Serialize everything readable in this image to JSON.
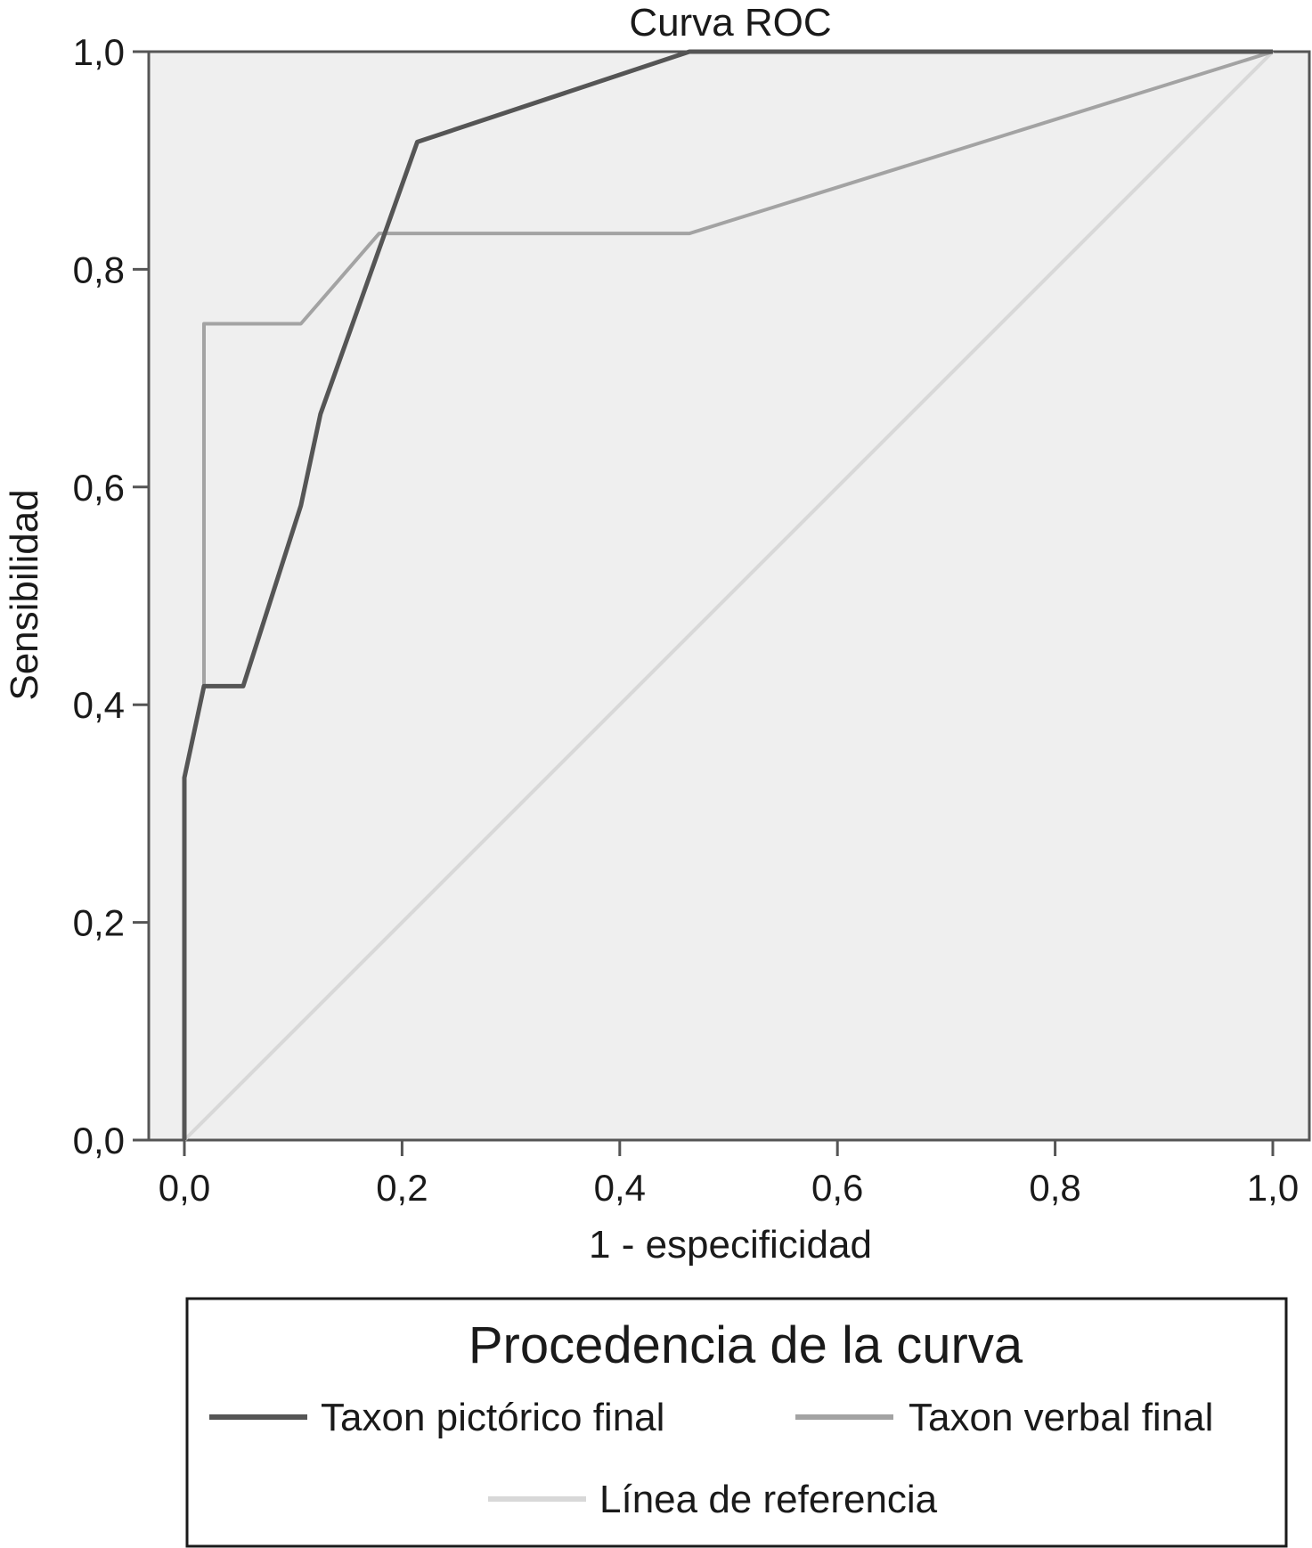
{
  "chart_data": {
    "type": "line",
    "title": "Curva ROC",
    "xlabel": "1 - especificidad",
    "ylabel": "Sensibilidad",
    "xlim": [
      0,
      1
    ],
    "ylim": [
      0,
      1
    ],
    "x_ticks": [
      "0,0",
      "0,2",
      "0,4",
      "0,6",
      "0,8",
      "1,0"
    ],
    "y_ticks": [
      "0,0",
      "0,2",
      "0,4",
      "0,6",
      "0,8",
      "1,0"
    ],
    "grid": false,
    "legend": {
      "title": "Procedencia de la curva",
      "placement": "bottom"
    },
    "series": [
      {
        "name": "Taxon pictórico final",
        "color": "#555555",
        "points": [
          [
            0.0,
            0.0
          ],
          [
            0.0,
            0.333
          ],
          [
            0.018,
            0.417
          ],
          [
            0.054,
            0.417
          ],
          [
            0.107,
            0.583
          ],
          [
            0.125,
            0.667
          ],
          [
            0.214,
            0.917
          ],
          [
            0.464,
            1.0
          ],
          [
            1.0,
            1.0
          ]
        ]
      },
      {
        "name": "Taxon verbal final",
        "color": "#a3a3a3",
        "points": [
          [
            0.0,
            0.0
          ],
          [
            0.0,
            0.333
          ],
          [
            0.018,
            0.417
          ],
          [
            0.018,
            0.75
          ],
          [
            0.107,
            0.75
          ],
          [
            0.179,
            0.833
          ],
          [
            0.464,
            0.833
          ],
          [
            1.0,
            1.0
          ]
        ]
      },
      {
        "name": "Línea de referencia",
        "color": "#d8d8d8",
        "points": [
          [
            0.0,
            0.0
          ],
          [
            1.0,
            1.0
          ]
        ]
      }
    ],
    "plot_background": "#efefef"
  }
}
